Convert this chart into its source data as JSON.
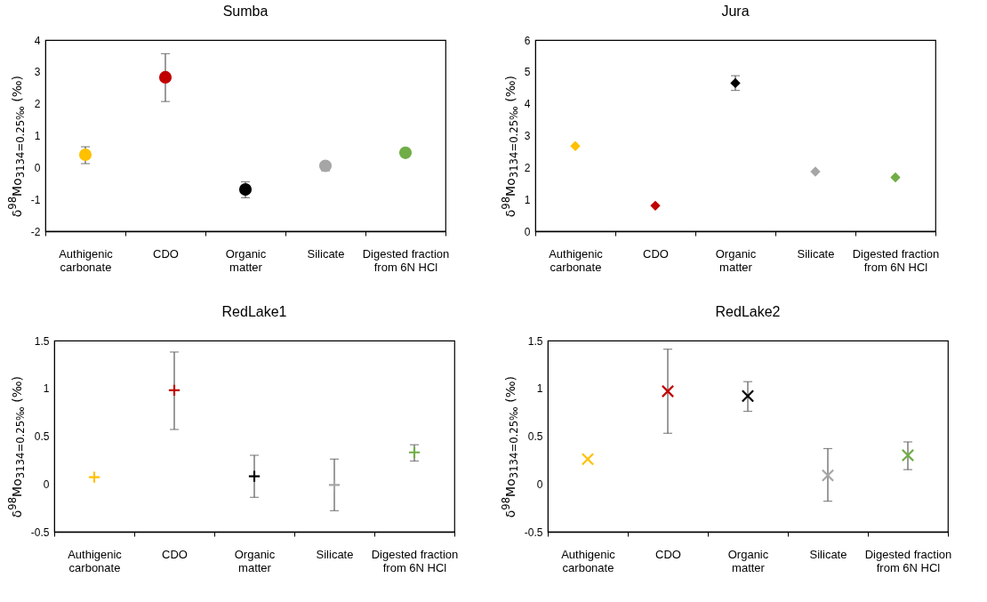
{
  "chart_data": [
    {
      "type": "scatter",
      "title": "Sumba",
      "ylabel": "δ$^{98}$Mo$_{3134=0.25‰}$ (‰)",
      "categories": [
        "Authigenic carbonate",
        "CDO",
        "Organic matter",
        "Silicate",
        "Digested fraction from 6N HCl"
      ],
      "values": [
        0.4,
        2.83,
        -0.69,
        0.05,
        0.46
      ],
      "errors": [
        [
          0.12,
          0.65
        ],
        [
          2.07,
          3.57
        ],
        [
          -0.95,
          -0.45
        ],
        [
          -0.1,
          0.1
        ],
        null
      ],
      "colors": [
        "#ffc000",
        "#c00000",
        "#000000",
        "#a6a6a6",
        "#70ad47"
      ],
      "ylim": [
        -2,
        4
      ],
      "yticks": [
        -2,
        -1,
        0,
        1,
        2,
        3,
        4
      ],
      "marker": "circle",
      "grid": false
    },
    {
      "type": "scatter",
      "title": "Jura",
      "ylabel": "δ$^{98}$Mo$_{3134=0.25‰}$ (‰)",
      "categories": [
        "Authigenic carbonate",
        "CDO",
        "Organic matter",
        "Silicate",
        "Digested fraction from 6N HCl"
      ],
      "values": [
        2.67,
        0.8,
        4.65,
        1.87,
        1.69
      ],
      "errors": [
        null,
        null,
        [
          4.42,
          4.88
        ],
        null,
        null
      ],
      "colors": [
        "#ffc000",
        "#c00000",
        "#000000",
        "#a6a6a6",
        "#70ad47"
      ],
      "ylim": [
        0,
        6
      ],
      "yticks": [
        0,
        1,
        2,
        3,
        4,
        5,
        6
      ],
      "marker": "diamond",
      "grid": false
    },
    {
      "type": "scatter",
      "title": "RedLake1",
      "ylabel": "δ$^{98}$Mo$_{3134=0.25‰}$ (‰)",
      "categories": [
        "Authigenic carbonate",
        "CDO",
        "Organic matter",
        "Silicate",
        "Digested fraction from 6N HCl"
      ],
      "values": [
        0.07,
        0.98,
        0.08,
        -0.01,
        0.33
      ],
      "errors": [
        null,
        [
          0.57,
          1.38
        ],
        [
          -0.14,
          0.3
        ],
        [
          -0.28,
          0.26
        ],
        [
          0.24,
          0.41
        ]
      ],
      "colors": [
        "#ffc000",
        "#c00000",
        "#000000",
        "#a6a6a6",
        "#70ad47"
      ],
      "ylim": [
        -0.5,
        1.5
      ],
      "yticks": [
        -0.5,
        0,
        0.5,
        1,
        1.5
      ],
      "marker": "cross",
      "grid": false
    },
    {
      "type": "scatter",
      "title": "RedLake2",
      "ylabel": "δ$^{98}$Mo$_{3134=0.25‰}$ (‰)",
      "categories": [
        "Authigenic carbonate",
        "CDO",
        "Organic matter",
        "Silicate",
        "Digested fraction from 6N HCl"
      ],
      "values": [
        0.26,
        0.97,
        0.92,
        0.09,
        0.3
      ],
      "errors": [
        null,
        [
          0.53,
          1.41
        ],
        [
          0.76,
          1.07
        ],
        [
          -0.18,
          0.37
        ],
        [
          0.15,
          0.44
        ]
      ],
      "colors": [
        "#ffc000",
        "#c00000",
        "#000000",
        "#a6a6a6",
        "#70ad47"
      ],
      "ylim": [
        -0.5,
        1.5
      ],
      "yticks": [
        -0.5,
        0,
        0.5,
        1,
        1.5
      ],
      "marker": "x",
      "grid": false
    }
  ]
}
